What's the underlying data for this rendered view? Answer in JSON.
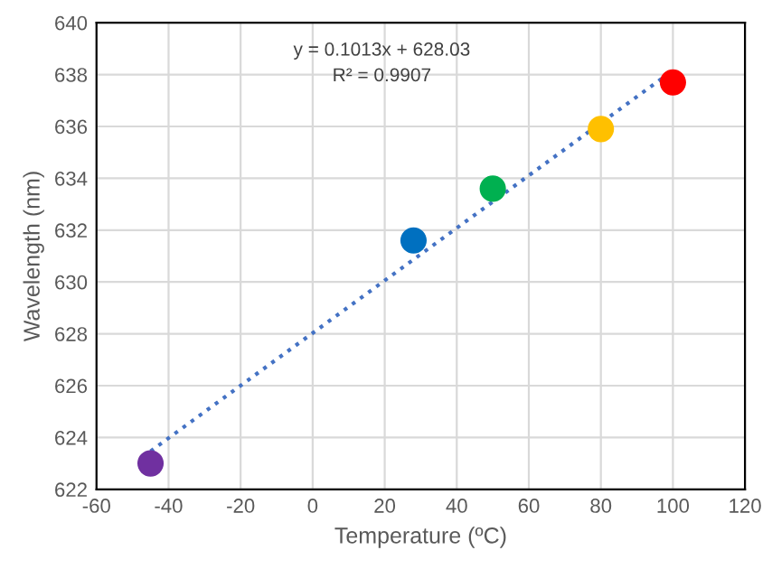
{
  "chart_data": {
    "type": "scatter",
    "xlabel": "Temperature (ºC)",
    "ylabel": "Wavelength (nm)",
    "xlim": [
      -60,
      120
    ],
    "xticks": [
      -60,
      -40,
      -20,
      0,
      20,
      40,
      60,
      80,
      100,
      120
    ],
    "ylim": [
      622,
      640
    ],
    "yticks": [
      622,
      624,
      626,
      628,
      630,
      632,
      634,
      636,
      638,
      640
    ],
    "grid": true,
    "series": [
      {
        "marker": "circle",
        "x": [
          -45,
          28,
          50,
          80,
          100
        ],
        "values": [
          623.0,
          631.6,
          633.6,
          635.9,
          637.7
        ],
        "colors": [
          "#7030a0",
          "#0070c0",
          "#00b050",
          "#ffc000",
          "#ff0000"
        ]
      },
      {
        "type": "line",
        "x": [
          -45,
          100
        ],
        "values": [
          623.47,
          638.16
        ],
        "color": "#4472c4",
        "line_style": "dotted",
        "marker": "none"
      }
    ],
    "annotations": [
      "y = 0.1013x + 628.03",
      "R² = 0.9907"
    ]
  }
}
